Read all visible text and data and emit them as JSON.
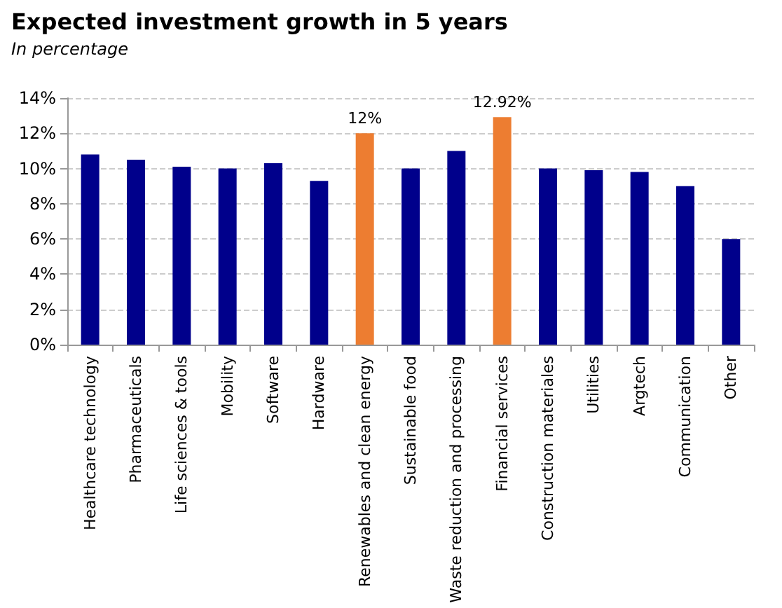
{
  "chart_data": {
    "type": "bar",
    "title": "Expected investment growth in 5 years",
    "subtitle": "In percentage",
    "categories": [
      "Healthcare technology",
      "Pharmaceuticals",
      "Life sciences & tools",
      "Mobility",
      "Software",
      "Hardware",
      "Renewables and clean energy",
      "Sustainable food",
      "Waste reduction and processing",
      "Financial services",
      "Construction materiales",
      "Utilities",
      "Argtech",
      "Communication",
      "Other"
    ],
    "values": [
      10.8,
      10.5,
      10.1,
      10.0,
      10.3,
      9.3,
      12,
      10.0,
      11.0,
      12.92,
      10.0,
      9.9,
      9.8,
      9.0,
      6.0
    ],
    "colors": [
      "#00008b",
      "#00008b",
      "#00008b",
      "#00008b",
      "#00008b",
      "#00008b",
      "#ed7d31",
      "#00008b",
      "#00008b",
      "#ed7d31",
      "#00008b",
      "#00008b",
      "#00008b",
      "#00008b",
      "#00008b"
    ],
    "value_labels": [
      null,
      null,
      null,
      null,
      null,
      null,
      "12%",
      null,
      null,
      "12.92%",
      null,
      null,
      null,
      null,
      null
    ],
    "ylim": [
      0,
      14
    ],
    "yticks": [
      {
        "value": 0,
        "label": "0%"
      },
      {
        "value": 2,
        "label": "2%"
      },
      {
        "value": 4,
        "label": "4%"
      },
      {
        "value": 6,
        "label": "6%"
      },
      {
        "value": 8,
        "label": "8%"
      },
      {
        "value": 10,
        "label": "10%"
      },
      {
        "value": 12,
        "label": "12%"
      },
      {
        "value": 14,
        "label": "14%"
      }
    ],
    "grid": "y"
  }
}
